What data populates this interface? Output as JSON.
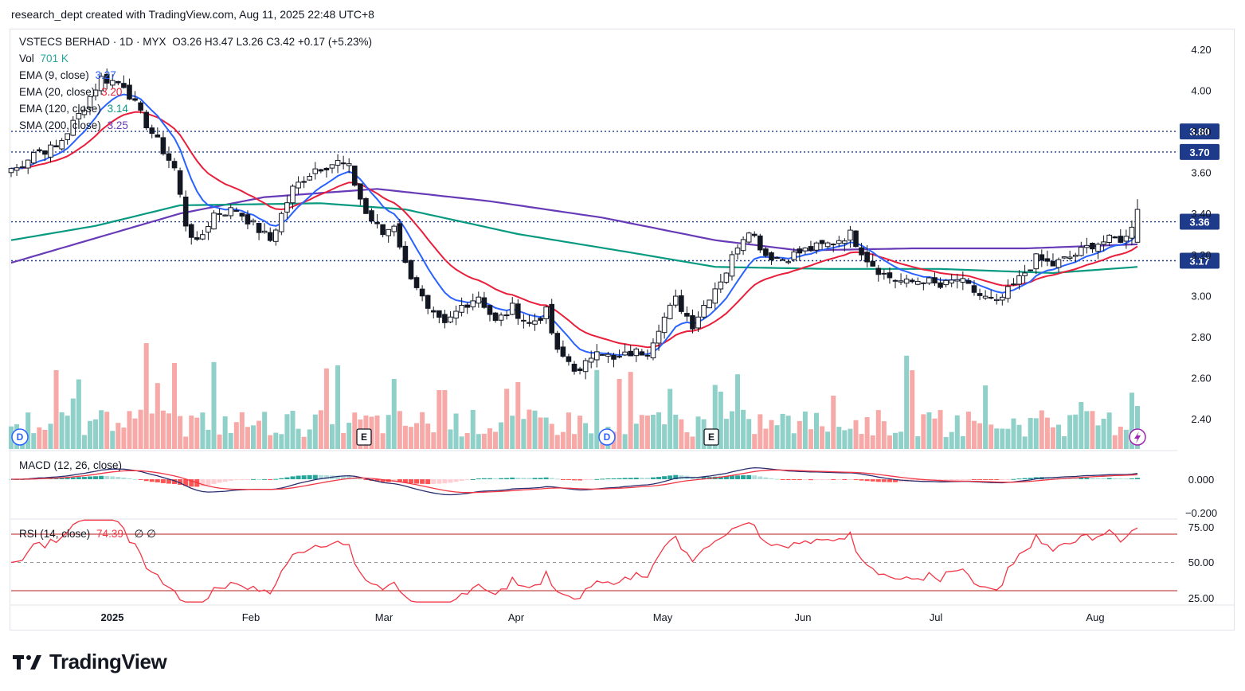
{
  "header": {
    "attribution": "research_dept created with TradingView.com, Aug 11, 2025 22:48 UTC+8"
  },
  "legend": {
    "symbol": "VSTECS BERHAD · 1D · MYX",
    "ohlc": "O3.26  H3.47  L3.26  C3.42  +0.17 (+5.23%)",
    "vol_label": "Vol",
    "vol_value": "701 K",
    "ema9_label": "EMA (9, close)",
    "ema9_value": "3.27",
    "ema20_label": "EMA (20, close)",
    "ema20_value": "3.20",
    "ema120_label": "EMA (120, close)",
    "ema120_value": "3.14",
    "sma200_label": "SMA (200, close)",
    "sma200_value": "3.25",
    "macd_label": "MACD (12, 26, close)",
    "rsi_label": "RSI (14, close)",
    "rsi_value": "74.39",
    "rsi_extra": "∅  ∅"
  },
  "brand": {
    "name": "TradingView"
  },
  "colors": {
    "up": "#26a69a",
    "down": "#ef5350",
    "candle_down": "#131722",
    "ema9": "#2962ff",
    "ema20": "#e91e3a",
    "ema120": "#089981",
    "sma200": "#673ab7",
    "level_line": "#1e3a8a",
    "rsi_line": "#f23645",
    "macd_line": "#2a2e6e",
    "signal_line": "#f23645"
  },
  "chart_data": {
    "type": "candlestick",
    "price_axis": {
      "ticks": [
        "4.20",
        "4.00",
        "3.80",
        "3.60",
        "3.40",
        "3.20",
        "3.00",
        "2.80",
        "2.60",
        "2.40"
      ],
      "range": [
        2.25,
        4.27
      ]
    },
    "levels": [
      {
        "label": "3.80",
        "value": 3.8
      },
      {
        "label": "3.70",
        "value": 3.7
      },
      {
        "label": "3.36",
        "value": 3.36
      },
      {
        "label": "3.17",
        "value": 3.17
      }
    ],
    "months": [
      "2025",
      "Feb",
      "Mar",
      "Apr",
      "May",
      "Jun",
      "Jul",
      "Aug"
    ],
    "macd_axis": {
      "ticks": [
        "0.000",
        "−0.200"
      ]
    },
    "rsi_axis": {
      "ticks": [
        "75.00",
        "50.00",
        "25.00"
      ],
      "bands": [
        70,
        30
      ]
    },
    "events": [
      {
        "label": "D",
        "kind": "dividend"
      },
      {
        "label": "E",
        "kind": "earnings"
      },
      {
        "label": "D",
        "kind": "dividend"
      },
      {
        "label": "E",
        "kind": "earnings"
      }
    ],
    "close_key": [
      [
        1,
        3.62
      ],
      [
        4,
        3.7
      ],
      [
        8,
        3.72
      ],
      [
        12,
        3.88
      ],
      [
        16,
        4.06
      ],
      [
        20,
        4.03
      ],
      [
        23,
        3.88
      ],
      [
        26,
        3.75
      ],
      [
        29,
        3.62
      ],
      [
        31,
        3.35
      ],
      [
        33,
        3.25
      ],
      [
        36,
        3.4
      ],
      [
        40,
        3.42
      ],
      [
        44,
        3.32
      ],
      [
        46,
        3.27
      ],
      [
        50,
        3.52
      ],
      [
        54,
        3.62
      ],
      [
        58,
        3.65
      ],
      [
        60,
        3.62
      ],
      [
        63,
        3.4
      ],
      [
        66,
        3.3
      ],
      [
        68,
        3.35
      ],
      [
        70,
        3.15
      ],
      [
        72,
        3.05
      ],
      [
        74,
        2.92
      ],
      [
        77,
        2.85
      ],
      [
        80,
        2.95
      ],
      [
        83,
        3.0
      ],
      [
        86,
        2.87
      ],
      [
        89,
        2.94
      ],
      [
        92,
        2.86
      ],
      [
        95,
        2.92
      ],
      [
        97,
        2.72
      ],
      [
        99,
        2.68
      ],
      [
        101,
        2.62
      ],
      [
        104,
        2.75
      ],
      [
        107,
        2.68
      ],
      [
        110,
        2.72
      ],
      [
        113,
        2.73
      ],
      [
        115,
        2.85
      ],
      [
        118,
        2.98
      ],
      [
        121,
        2.86
      ],
      [
        124,
        3.0
      ],
      [
        127,
        3.12
      ],
      [
        129,
        3.25
      ],
      [
        131,
        3.33
      ],
      [
        134,
        3.2
      ],
      [
        137,
        3.18
      ],
      [
        141,
        3.22
      ],
      [
        145,
        3.25
      ],
      [
        149,
        3.3
      ],
      [
        152,
        3.18
      ],
      [
        155,
        3.1
      ],
      [
        159,
        3.06
      ],
      [
        162,
        3.08
      ],
      [
        165,
        3.04
      ],
      [
        168,
        3.08
      ],
      [
        172,
        3.0
      ],
      [
        175,
        2.96
      ],
      [
        179,
        3.08
      ],
      [
        182,
        3.18
      ],
      [
        185,
        3.15
      ],
      [
        189,
        3.2
      ],
      [
        192,
        3.25
      ],
      [
        195,
        3.27
      ],
      [
        198,
        3.28
      ],
      [
        200,
        3.42
      ]
    ],
    "indicators": {
      "sma200": [
        [
          0,
          3.16
        ],
        [
          30,
          3.4
        ],
        [
          45,
          3.48
        ],
        [
          65,
          3.52
        ],
        [
          85,
          3.46
        ],
        [
          105,
          3.38
        ],
        [
          125,
          3.27
        ],
        [
          140,
          3.22
        ],
        [
          160,
          3.23
        ],
        [
          180,
          3.23
        ],
        [
          200,
          3.25
        ]
      ],
      "ema120": [
        [
          0,
          3.27
        ],
        [
          15,
          3.34
        ],
        [
          30,
          3.44
        ],
        [
          55,
          3.45
        ],
        [
          70,
          3.42
        ],
        [
          90,
          3.3
        ],
        [
          110,
          3.21
        ],
        [
          125,
          3.14
        ],
        [
          145,
          3.13
        ],
        [
          165,
          3.13
        ],
        [
          185,
          3.11
        ],
        [
          200,
          3.14
        ]
      ]
    }
  }
}
